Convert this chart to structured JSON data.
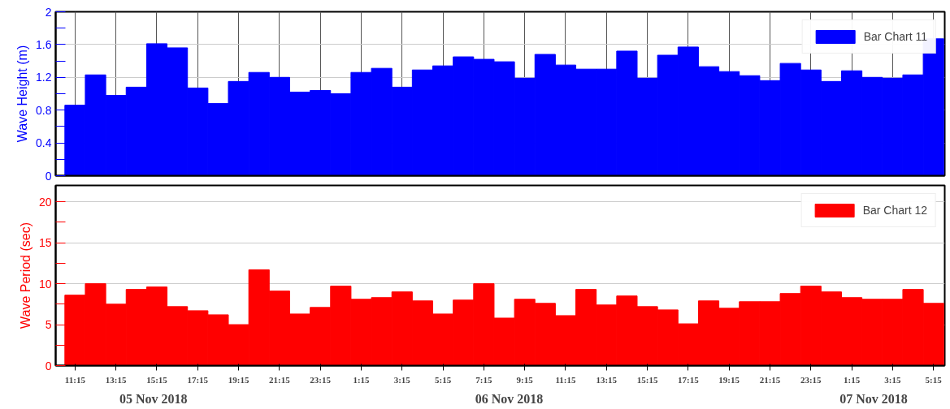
{
  "chart_data": [
    {
      "type": "bar",
      "ylabel": "Wave Height (m)",
      "categories": [
        null,
        null,
        null,
        null,
        null,
        null,
        null,
        null,
        null,
        null,
        null,
        null,
        null,
        null,
        null,
        null,
        null,
        null,
        null,
        null,
        null,
        null,
        null,
        null,
        null,
        null,
        null,
        null,
        null,
        null,
        null,
        null,
        null,
        null,
        null,
        null,
        null,
        null,
        null,
        null,
        null,
        null,
        null
      ],
      "series": [
        {
          "name": "Bar Chart 11",
          "color": "#0000ff",
          "values": [
            0.86,
            1.23,
            0.98,
            1.08,
            1.61,
            1.56,
            1.07,
            0.88,
            1.15,
            1.26,
            1.2,
            1.02,
            1.04,
            1.0,
            1.26,
            1.31,
            1.08,
            1.29,
            1.34,
            1.45,
            1.42,
            1.39,
            1.19,
            1.48,
            1.35,
            1.3,
            1.3,
            1.52,
            1.19,
            1.47,
            1.57,
            1.33,
            1.27,
            1.22,
            1.16,
            1.37,
            1.29,
            1.15,
            1.28,
            1.2,
            1.19,
            1.23,
            1.67
          ]
        }
      ],
      "ylim": [
        0,
        2
      ],
      "yticks": [
        0,
        {
          "value": 0.2,
          "label": null
        },
        0.4,
        {
          "value": 0.6,
          "label": null
        },
        0.8,
        {
          "value": 1.0,
          "label": null
        },
        1.2,
        {
          "value": 1.4,
          "label": null
        },
        1.6,
        {
          "value": 1.8,
          "label": null
        },
        2
      ],
      "grid": true,
      "legend": "top right",
      "tick_labels": "y"
    },
    {
      "type": "bar",
      "ylabel": "Wave Period (sec)",
      "categories": [
        "11:15",
        null,
        "13:15",
        null,
        "15:15",
        null,
        "17:15",
        null,
        "19:15",
        null,
        "21:15",
        null,
        "23:15",
        null,
        "1:15",
        null,
        "3:15",
        null,
        "5:15",
        null,
        "7:15",
        null,
        "9:15",
        null,
        "11:15",
        null,
        "13:15",
        null,
        "15:15",
        null,
        "17:15",
        null,
        "19:15",
        null,
        "21:15",
        null,
        "23:15",
        null,
        "1:15",
        null,
        "3:15",
        null,
        "5:15"
      ],
      "series": [
        {
          "name": "Bar Chart 12",
          "color": "#ff0000",
          "values": [
            8.6,
            10.0,
            7.5,
            9.3,
            9.6,
            7.2,
            6.7,
            6.2,
            5.0,
            11.7,
            9.1,
            6.3,
            7.1,
            9.7,
            8.1,
            8.3,
            9.0,
            7.9,
            6.3,
            8.0,
            10.0,
            5.8,
            8.1,
            7.6,
            6.1,
            9.3,
            7.4,
            8.5,
            7.2,
            6.8,
            5.1,
            7.9,
            7.0,
            7.8,
            7.8,
            8.8,
            9.7,
            9.0,
            8.3,
            8.1,
            8.1,
            9.3,
            7.6
          ]
        }
      ],
      "ylim": [
        0,
        22
      ],
      "yticks": [
        0,
        {
          "value": 2.5,
          "label": null
        },
        5,
        {
          "value": 7.5,
          "label": null
        },
        10,
        {
          "value": 12.5,
          "label": null
        },
        15,
        {
          "value": 17.5,
          "label": null
        },
        20
      ],
      "grid": "y",
      "legend": "top right",
      "annotations": [
        "05 Nov 2018",
        "06 Nov 2018",
        "07 Nov 2018"
      ]
    }
  ]
}
